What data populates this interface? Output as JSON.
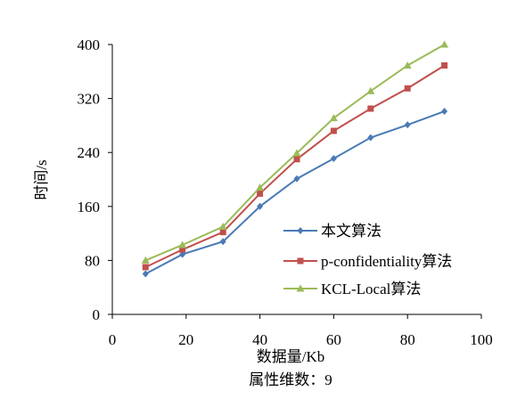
{
  "chart_data": {
    "type": "line",
    "xlabel": "数据量/Kb",
    "ylabel": "时间/s",
    "caption": "属性维数：9",
    "x": [
      9,
      19,
      30,
      40,
      50,
      60,
      70,
      80,
      90
    ],
    "xlim": [
      0,
      100
    ],
    "xticks": [
      0,
      20,
      40,
      60,
      80,
      100
    ],
    "ylim": [
      0,
      400
    ],
    "yticks": [
      0,
      80,
      160,
      240,
      320,
      400
    ],
    "grid": false,
    "legend_position": "lower-right",
    "series": [
      {
        "name": "本文算法",
        "color": "#4a7ab6",
        "marker": "diamond",
        "values": [
          60,
          89,
          108,
          160,
          201,
          231,
          262,
          281,
          301
        ]
      },
      {
        "name": "p-confidentiality算法",
        "color": "#c0504d",
        "marker": "square",
        "values": [
          70,
          96,
          122,
          179,
          230,
          272,
          305,
          335,
          369
        ]
      },
      {
        "name": "KCL-Local算法",
        "color": "#9bbb59",
        "marker": "triangle",
        "values": [
          80,
          103,
          130,
          188,
          239,
          291,
          331,
          369,
          400
        ]
      }
    ]
  }
}
